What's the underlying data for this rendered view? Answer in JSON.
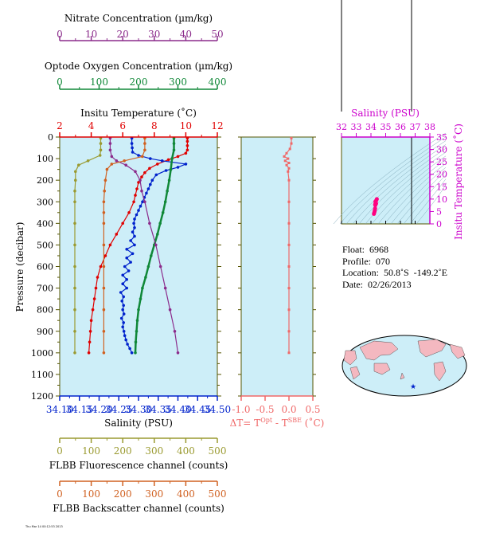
{
  "float_info": {
    "float": "Float:  6968",
    "profile": "Profile:  070",
    "location": "Location:  50.8˚S  -149.2˚E",
    "date": "Date:  02/26/2013"
  },
  "footer_note": "Thu Mar 14 00:12:53 2013",
  "colors": {
    "nitrate": "#8b2b8b",
    "oxygen": "#108838",
    "temperature": "#e00000",
    "salinity": "#0022cc",
    "fluorescence": "#9a9a30",
    "backscatter": "#d06020",
    "delta_t": "#f06868",
    "ts_axis": "#cc00cc",
    "panel_bg": "#cdeef8",
    "frame": "#555500"
  },
  "chart_data": [
    {
      "type": "line",
      "panel": "main_profile",
      "ylabel": "Pressure (decibar)",
      "ylim": [
        1200,
        0
      ],
      "yticks": [
        "0",
        "100",
        "200",
        "300",
        "400",
        "500",
        "600",
        "700",
        "800",
        "900",
        "1000",
        "1100",
        "1200"
      ],
      "axes": {
        "nitrate": {
          "title": "Nitrate Concentration (µm/kg)",
          "range": [
            0,
            50
          ],
          "ticks": [
            "0",
            "10",
            "20",
            "30",
            "40",
            "50"
          ]
        },
        "oxygen": {
          "title": "Optode Oxygen Concentration (µm/kg)",
          "range": [
            0,
            400
          ],
          "ticks": [
            "0",
            "100",
            "200",
            "300",
            "400"
          ]
        },
        "temperature": {
          "title": "Insitu Temperature (˚C)",
          "range": [
            2,
            12
          ],
          "ticks": [
            "2",
            "4",
            "6",
            "8",
            "10",
            "12"
          ]
        },
        "salinity": {
          "title": "Salinity (PSU)",
          "range": [
            34.1,
            34.5
          ],
          "ticks": [
            "34.10",
            "34.15",
            "34.20",
            "34.25",
            "34.30",
            "34.35",
            "34.40",
            "34.45",
            "34.50"
          ]
        },
        "fluorescence": {
          "title": "FLBB Fluorescence channel (counts)",
          "range": [
            0,
            500
          ],
          "ticks": [
            "0",
            "100",
            "200",
            "300",
            "400",
            "500"
          ]
        },
        "backscatter": {
          "title": "FLBB Backscatter channel (counts)",
          "range": [
            0,
            500
          ],
          "ticks": [
            "0",
            "100",
            "200",
            "300",
            "400",
            "500"
          ]
        }
      },
      "series": [
        {
          "key": "temperature",
          "color": "#e00000",
          "points": [
            [
              10.1,
              5
            ],
            [
              10.1,
              20
            ],
            [
              10.1,
              40
            ],
            [
              10.1,
              60
            ],
            [
              10.0,
              75
            ],
            [
              9.5,
              90
            ],
            [
              8.9,
              105
            ],
            [
              8.2,
              125
            ],
            [
              7.7,
              145
            ],
            [
              7.4,
              165
            ],
            [
              7.2,
              185
            ],
            [
              7.0,
              210
            ],
            [
              6.9,
              240
            ],
            [
              6.8,
              270
            ],
            [
              6.7,
              300
            ],
            [
              6.4,
              350
            ],
            [
              6.0,
              400
            ],
            [
              5.6,
              450
            ],
            [
              5.2,
              500
            ],
            [
              4.9,
              550
            ],
            [
              4.6,
              600
            ],
            [
              4.4,
              650
            ],
            [
              4.3,
              700
            ],
            [
              4.2,
              750
            ],
            [
              4.1,
              800
            ],
            [
              4.0,
              850
            ],
            [
              3.95,
              900
            ],
            [
              3.9,
              950
            ],
            [
              3.85,
              1000
            ]
          ]
        },
        {
          "key": "salinity",
          "color": "#0022cc",
          "points": [
            [
              34.283,
              5
            ],
            [
              34.283,
              30
            ],
            [
              34.284,
              50
            ],
            [
              34.285,
              70
            ],
            [
              34.3,
              85
            ],
            [
              34.33,
              100
            ],
            [
              34.36,
              110
            ],
            [
              34.42,
              125
            ],
            [
              34.4,
              140
            ],
            [
              34.37,
              155
            ],
            [
              34.345,
              175
            ],
            [
              34.335,
              200
            ],
            [
              34.33,
              220
            ],
            [
              34.325,
              240
            ],
            [
              34.32,
              260
            ],
            [
              34.315,
              280
            ],
            [
              34.31,
              300
            ],
            [
              34.305,
              320
            ],
            [
              34.3,
              340
            ],
            [
              34.295,
              360
            ],
            [
              34.29,
              380
            ],
            [
              34.288,
              400
            ],
            [
              34.29,
              420
            ],
            [
              34.285,
              440
            ],
            [
              34.29,
              460
            ],
            [
              34.28,
              480
            ],
            [
              34.29,
              500
            ],
            [
              34.27,
              520
            ],
            [
              34.285,
              540
            ],
            [
              34.27,
              560
            ],
            [
              34.28,
              580
            ],
            [
              34.265,
              600
            ],
            [
              34.275,
              620
            ],
            [
              34.26,
              640
            ],
            [
              34.27,
              660
            ],
            [
              34.26,
              680
            ],
            [
              34.27,
              700
            ],
            [
              34.255,
              720
            ],
            [
              34.262,
              740
            ],
            [
              34.258,
              760
            ],
            [
              34.262,
              780
            ],
            [
              34.26,
              800
            ],
            [
              34.263,
              820
            ],
            [
              34.257,
              840
            ],
            [
              34.262,
              860
            ],
            [
              34.26,
              880
            ],
            [
              34.263,
              900
            ],
            [
              34.265,
              920
            ],
            [
              34.268,
              940
            ],
            [
              34.272,
              960
            ],
            [
              34.278,
              980
            ],
            [
              34.283,
              1000
            ]
          ]
        },
        {
          "key": "oxygen",
          "color": "#108838",
          "points": [
            [
              290,
              5
            ],
            [
              290,
              30
            ],
            [
              290,
              60
            ],
            [
              285,
              100
            ],
            [
              282,
              150
            ],
            [
              278,
              200
            ],
            [
              273,
              250
            ],
            [
              268,
              300
            ],
            [
              262,
              350
            ],
            [
              255,
              400
            ],
            [
              248,
              450
            ],
            [
              240,
              500
            ],
            [
              232,
              550
            ],
            [
              225,
              600
            ],
            [
              218,
              650
            ],
            [
              210,
              700
            ],
            [
              205,
              750
            ],
            [
              200,
              800
            ],
            [
              197,
              850
            ],
            [
              195,
              900
            ],
            [
              193,
              950
            ],
            [
              192,
              1000
            ]
          ]
        },
        {
          "key": "nitrate",
          "color": "#8b2b8b",
          "points": [
            [
              16,
              5
            ],
            [
              16,
              30
            ],
            [
              16,
              60
            ],
            [
              16.5,
              90
            ],
            [
              18,
              110
            ],
            [
              21,
              130
            ],
            [
              24,
              160
            ],
            [
              25.5,
              200
            ],
            [
              26,
              250
            ],
            [
              27,
              300
            ],
            [
              28.5,
              400
            ],
            [
              30.5,
              500
            ],
            [
              32,
              600
            ],
            [
              33.5,
              700
            ],
            [
              35,
              800
            ],
            [
              36.5,
              900
            ],
            [
              37.5,
              1000
            ]
          ]
        },
        {
          "key": "fluorescence",
          "color": "#9a9a30",
          "points": [
            [
              130,
              5
            ],
            [
              130,
              30
            ],
            [
              130,
              60
            ],
            [
              128,
              85
            ],
            [
              90,
              110
            ],
            [
              60,
              130
            ],
            [
              50,
              160
            ],
            [
              50,
              200
            ],
            [
              48,
              250
            ],
            [
              48,
              300
            ],
            [
              48,
              400
            ],
            [
              48,
              500
            ],
            [
              48,
              600
            ],
            [
              48,
              700
            ],
            [
              48,
              800
            ],
            [
              48,
              900
            ],
            [
              48,
              1000
            ]
          ]
        },
        {
          "key": "backscatter",
          "color": "#d06020",
          "points": [
            [
              270,
              5
            ],
            [
              270,
              30
            ],
            [
              270,
              60
            ],
            [
              262,
              90
            ],
            [
              205,
              110
            ],
            [
              165,
              125
            ],
            [
              150,
              150
            ],
            [
              145,
              200
            ],
            [
              142,
              250
            ],
            [
              140,
              300
            ],
            [
              140,
              350
            ],
            [
              140,
              400
            ],
            [
              140,
              500
            ],
            [
              140,
              600
            ],
            [
              140,
              700
            ],
            [
              140,
              800
            ],
            [
              140,
              900
            ],
            [
              140,
              1000
            ]
          ]
        }
      ]
    },
    {
      "type": "line",
      "panel": "delta_t",
      "xlabel": "ΔT= T",
      "xlabel_sup1": "Opt",
      "xlabel_mid": " - T",
      "xlabel_sup2": "SBE",
      "xlabel_end": " (˚C)",
      "xlim": [
        -1.0,
        0.5
      ],
      "xticks": [
        "-1.0",
        "-0.5",
        "0.0",
        "0.5"
      ],
      "ylim": [
        1200,
        0
      ],
      "series": [
        {
          "name": "",
          "color": "#f06868",
          "points": [
            [
              0.05,
              5
            ],
            [
              0.05,
              30
            ],
            [
              0.02,
              55
            ],
            [
              -0.05,
              75
            ],
            [
              -0.1,
              90
            ],
            [
              -0.02,
              100
            ],
            [
              -0.08,
              110
            ],
            [
              0.0,
              120
            ],
            [
              -0.05,
              130
            ],
            [
              0.0,
              145
            ],
            [
              -0.02,
              160
            ],
            [
              0.0,
              200
            ],
            [
              0.0,
              300
            ],
            [
              0.0,
              400
            ],
            [
              0.0,
              500
            ],
            [
              0.0,
              600
            ],
            [
              0.0,
              700
            ],
            [
              0.0,
              800
            ],
            [
              0.0,
              900
            ],
            [
              0.0,
              1000
            ]
          ]
        }
      ]
    },
    {
      "type": "scatter",
      "panel": "ts_diagram",
      "title": "Salinity (PSU)",
      "ylabel": "Insitu Temperature (˚C)",
      "xlim": [
        32,
        38
      ],
      "xticks": [
        "32",
        "33",
        "34",
        "35",
        "36",
        "37",
        "38"
      ],
      "ylim": [
        0,
        35
      ],
      "yticks": [
        "0",
        "5",
        "10",
        "15",
        "20",
        "25",
        "30",
        "35"
      ],
      "points": [
        [
          34.2,
          4.0
        ],
        [
          34.25,
          5.0
        ],
        [
          34.28,
          6.2
        ],
        [
          34.3,
          7.5
        ],
        [
          34.32,
          8.5
        ],
        [
          34.36,
          9.5
        ],
        [
          34.4,
          10.0
        ],
        [
          34.3,
          9.0
        ],
        [
          34.28,
          7.8
        ],
        [
          34.22,
          4.5
        ],
        [
          34.26,
          5.5
        ],
        [
          34.35,
          8.2
        ]
      ]
    }
  ]
}
